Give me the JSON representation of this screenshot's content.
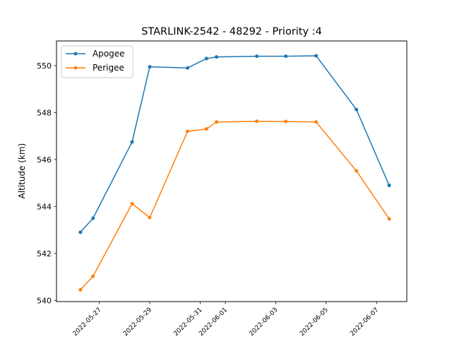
{
  "chart_data": {
    "type": "line",
    "title": "STARLINK-2542 - 48292 - Priority :4",
    "xlabel": "",
    "ylabel": "Altitude (km)",
    "ylim": [
      539.95,
      551.05
    ],
    "xlim_days": [
      -0.7,
      13.2
    ],
    "x_origin_date": "2022-05-26",
    "x": [
      0.25,
      0.75,
      2.3,
      3.0,
      4.5,
      5.25,
      5.65,
      7.25,
      8.4,
      9.6,
      11.2,
      12.5
    ],
    "series": [
      {
        "name": "Apogee",
        "color": "#1f77b4",
        "values": [
          542.9,
          543.5,
          546.75,
          549.95,
          549.9,
          550.3,
          550.37,
          550.4,
          550.4,
          550.42,
          548.13,
          544.9
        ]
      },
      {
        "name": "Perigee",
        "color": "#ff7f0e",
        "values": [
          540.45,
          541.03,
          544.12,
          543.53,
          547.2,
          547.3,
          547.6,
          547.63,
          547.62,
          547.6,
          545.52,
          543.47
        ]
      }
    ],
    "yticks": [
      540,
      542,
      544,
      546,
      548,
      550
    ],
    "yticks_text": [
      "540",
      "542",
      "544",
      "546",
      "548",
      "550"
    ],
    "xticks_days": [
      1,
      3,
      5,
      6,
      8,
      10,
      12
    ],
    "xticks": [
      "2022-05-27",
      "2022-05-29",
      "2022-05-31",
      "2022-06-01",
      "2022-06-03",
      "2022-06-05",
      "2022-06-07"
    ],
    "legend_position": "upper-left",
    "grid": false
  }
}
